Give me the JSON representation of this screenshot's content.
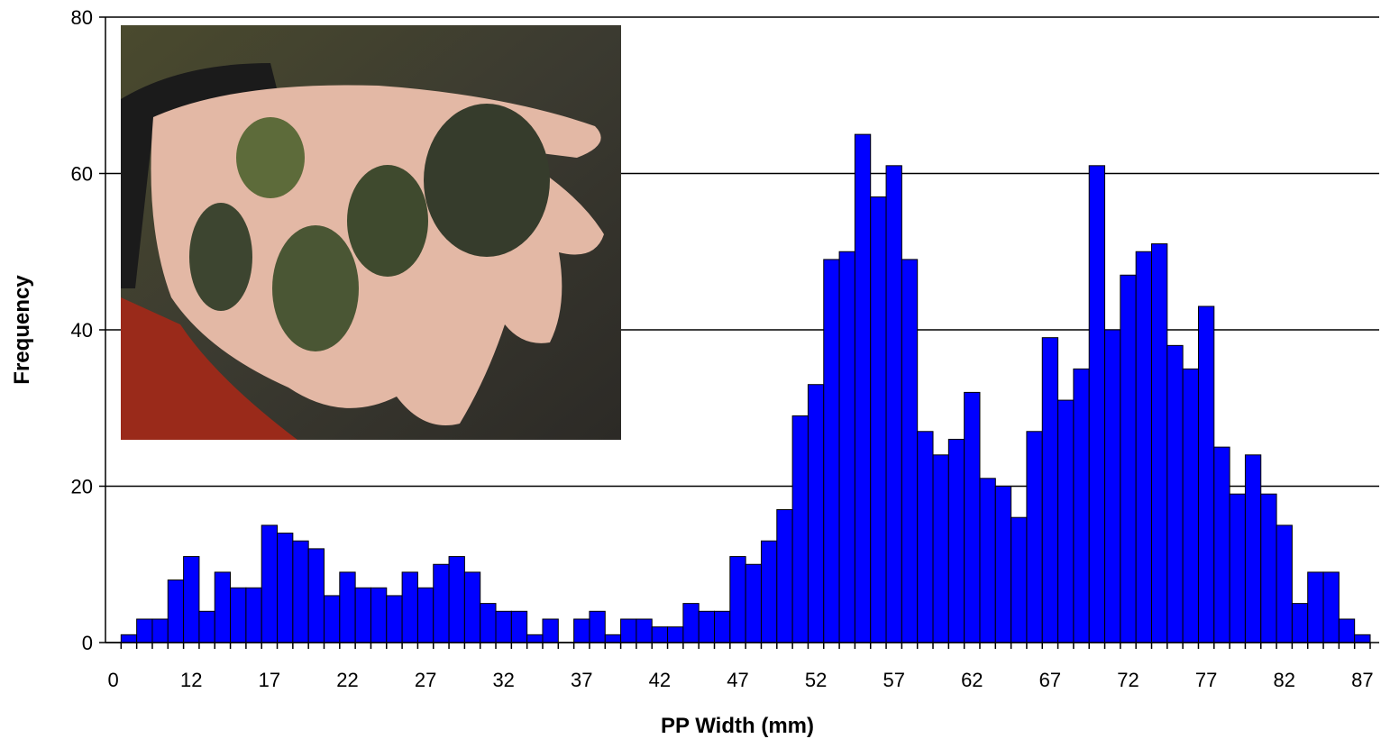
{
  "chart_data": {
    "type": "bar",
    "xlabel": "PP Width (mm)",
    "ylabel": "Frequency",
    "categories": [
      "0",
      null,
      null,
      null,
      null,
      "12",
      null,
      null,
      null,
      null,
      "17",
      null,
      null,
      null,
      null,
      "22",
      null,
      null,
      null,
      null,
      "27",
      null,
      null,
      null,
      null,
      "32",
      null,
      null,
      null,
      null,
      "37",
      null,
      null,
      null,
      null,
      "42",
      null,
      null,
      null,
      null,
      "47",
      null,
      null,
      null,
      null,
      "52",
      null,
      null,
      null,
      null,
      "57",
      null,
      null,
      null,
      null,
      "62",
      null,
      null,
      null,
      null,
      "67",
      null,
      null,
      null,
      null,
      "72",
      null,
      null,
      null,
      null,
      "77",
      null,
      null,
      null,
      null,
      "82",
      null,
      null,
      null,
      null,
      "87"
    ],
    "values": [
      0,
      1,
      3,
      3,
      8,
      11,
      4,
      9,
      7,
      7,
      15,
      14,
      13,
      12,
      6,
      9,
      7,
      7,
      6,
      9,
      7,
      10,
      11,
      9,
      5,
      4,
      4,
      1,
      3,
      0,
      3,
      4,
      1,
      3,
      3,
      2,
      2,
      5,
      4,
      4,
      11,
      10,
      13,
      17,
      29,
      33,
      49,
      50,
      65,
      57,
      61,
      49,
      27,
      24,
      26,
      32,
      21,
      20,
      16,
      27,
      39,
      31,
      35,
      61,
      40,
      47,
      50,
      51,
      38,
      35,
      43,
      25,
      19,
      24,
      19,
      15,
      5,
      9,
      9,
      3,
      1
    ],
    "color": "#0000ff",
    "ylim": [
      0,
      80
    ],
    "yticks": [
      0,
      20,
      40,
      60,
      80
    ],
    "grid": true
  }
}
